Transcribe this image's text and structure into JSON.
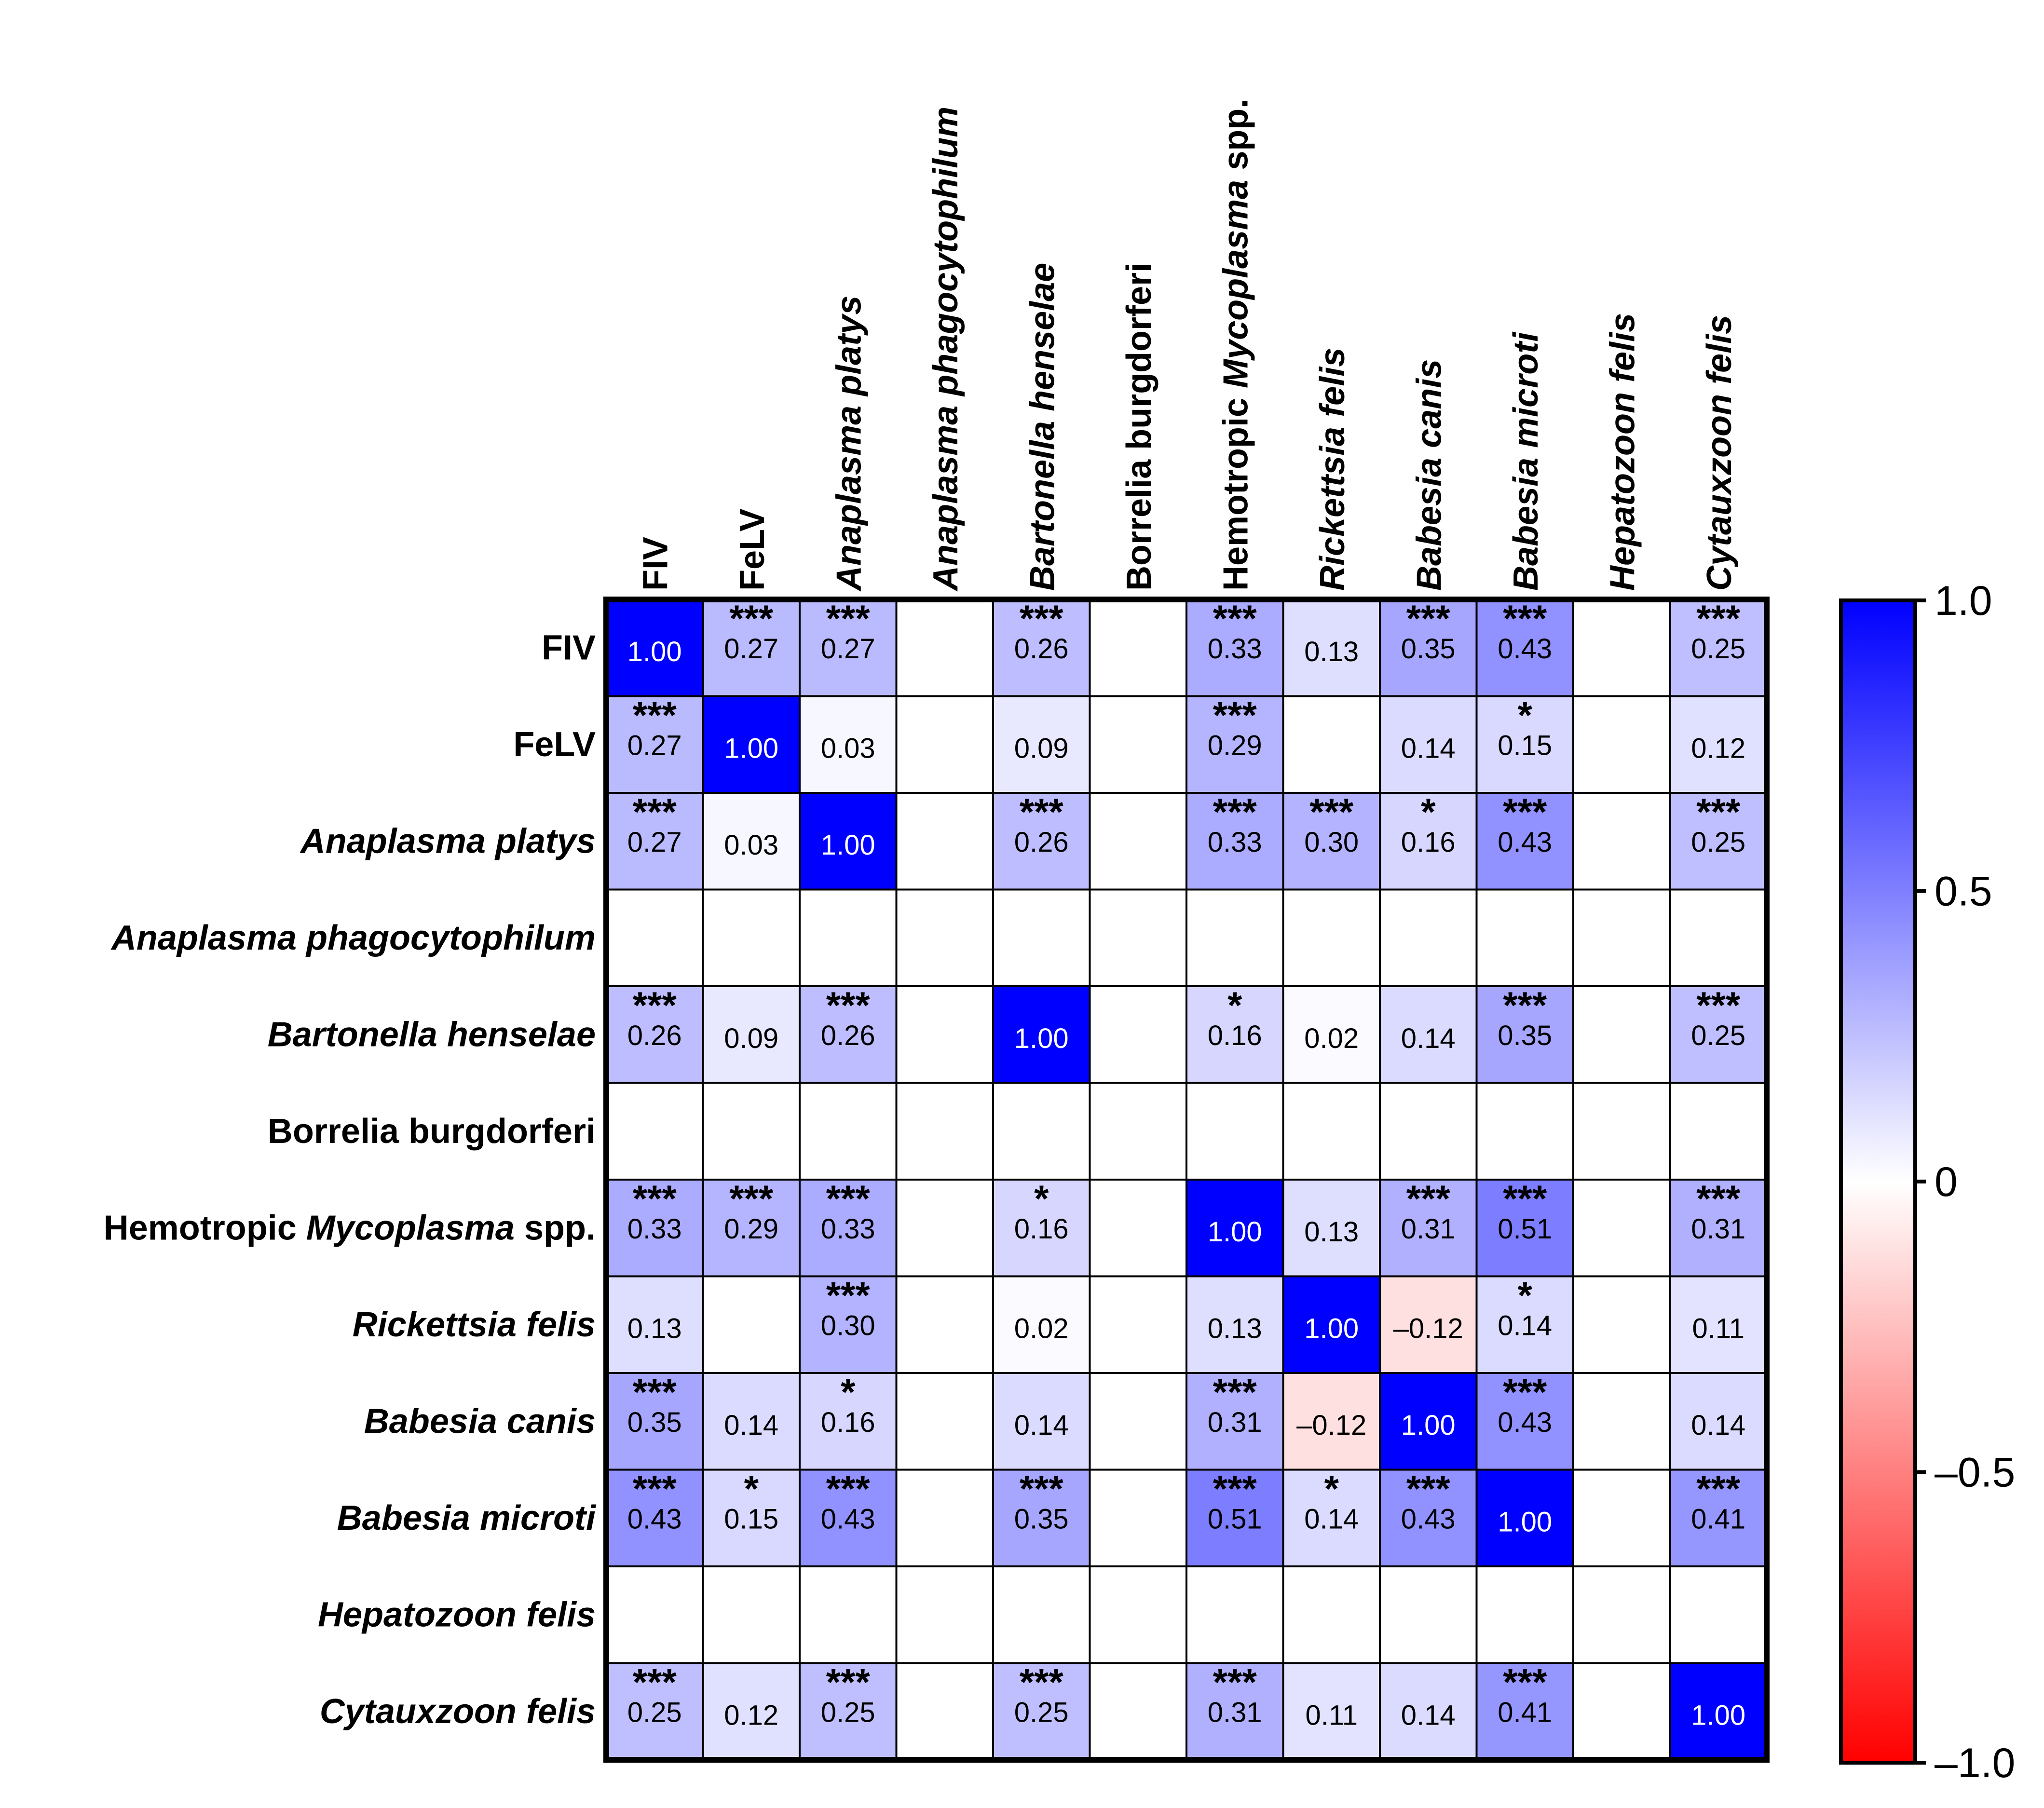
{
  "chart_data": {
    "type": "heatmap",
    "title": "",
    "row_labels": [
      {
        "segments": [
          {
            "text": "FIV",
            "italic": false
          }
        ]
      },
      {
        "segments": [
          {
            "text": "FeLV",
            "italic": false
          }
        ]
      },
      {
        "segments": [
          {
            "text": "Anaplasma platys",
            "italic": true
          }
        ]
      },
      {
        "segments": [
          {
            "text": "Anaplasma phagocytophilum",
            "italic": true
          }
        ]
      },
      {
        "segments": [
          {
            "text": "Bartonella henselae",
            "italic": true
          }
        ]
      },
      {
        "segments": [
          {
            "text": "Borrelia burgdorferi",
            "italic": false
          }
        ]
      },
      {
        "segments": [
          {
            "text": "Hemotropic ",
            "italic": false
          },
          {
            "text": "Mycoplasma",
            "italic": true
          },
          {
            "text": " spp.",
            "italic": false
          }
        ]
      },
      {
        "segments": [
          {
            "text": "Rickettsia felis",
            "italic": true
          }
        ]
      },
      {
        "segments": [
          {
            "text": "Babesia canis",
            "italic": true
          }
        ]
      },
      {
        "segments": [
          {
            "text": "Babesia microti",
            "italic": true
          }
        ]
      },
      {
        "segments": [
          {
            "text": "Hepatozoon felis",
            "italic": true
          }
        ]
      },
      {
        "segments": [
          {
            "text": "Cytauxzoon felis",
            "italic": true
          }
        ]
      }
    ],
    "values": [
      [
        1.0,
        0.27,
        0.27,
        null,
        0.26,
        null,
        0.33,
        0.13,
        0.35,
        0.43,
        null,
        0.25
      ],
      [
        0.27,
        1.0,
        0.03,
        null,
        0.09,
        null,
        0.29,
        null,
        0.14,
        0.15,
        null,
        0.12
      ],
      [
        0.27,
        0.03,
        1.0,
        null,
        0.26,
        null,
        0.33,
        0.3,
        0.16,
        0.43,
        null,
        0.25
      ],
      [
        null,
        null,
        null,
        null,
        null,
        null,
        null,
        null,
        null,
        null,
        null,
        null
      ],
      [
        0.26,
        0.09,
        0.26,
        null,
        1.0,
        null,
        0.16,
        0.02,
        0.14,
        0.35,
        null,
        0.25
      ],
      [
        null,
        null,
        null,
        null,
        null,
        null,
        null,
        null,
        null,
        null,
        null,
        null
      ],
      [
        0.33,
        0.29,
        0.33,
        null,
        0.16,
        null,
        1.0,
        0.13,
        0.31,
        0.51,
        null,
        0.31
      ],
      [
        0.13,
        null,
        0.3,
        null,
        0.02,
        null,
        0.13,
        1.0,
        -0.12,
        0.14,
        null,
        0.11
      ],
      [
        0.35,
        0.14,
        0.16,
        null,
        0.14,
        null,
        0.31,
        -0.12,
        1.0,
        0.43,
        null,
        0.14
      ],
      [
        0.43,
        0.15,
        0.43,
        null,
        0.35,
        null,
        0.51,
        0.14,
        0.43,
        1.0,
        null,
        0.41
      ],
      [
        null,
        null,
        null,
        null,
        null,
        null,
        null,
        null,
        null,
        null,
        null,
        null
      ],
      [
        0.25,
        0.12,
        0.25,
        null,
        0.25,
        null,
        0.31,
        0.11,
        0.14,
        0.41,
        null,
        1.0
      ]
    ],
    "value_labels": [
      [
        "1.00",
        "0.27",
        "0.27",
        "",
        "0.26",
        "",
        "0.33",
        "0.13",
        "0.35",
        "0.43",
        "",
        "0.25"
      ],
      [
        "0.27",
        "1.00",
        "0.03",
        "",
        "0.09",
        "",
        "0.29",
        "",
        "0.14",
        "0.15",
        "",
        "0.12"
      ],
      [
        "0.27",
        "0.03",
        "1.00",
        "",
        "0.26",
        "",
        "0.33",
        "0.30",
        "0.16",
        "0.43",
        "",
        "0.25"
      ],
      [
        "",
        "",
        "",
        "",
        "",
        "",
        "",
        "",
        "",
        "",
        "",
        ""
      ],
      [
        "0.26",
        "0.09",
        "0.26",
        "",
        "1.00",
        "",
        "0.16",
        "0.02",
        "0.14",
        "0.35",
        "",
        "0.25"
      ],
      [
        "",
        "",
        "",
        "",
        "",
        "",
        "",
        "",
        "",
        "",
        "",
        ""
      ],
      [
        "0.33",
        "0.29",
        "0.33",
        "",
        "0.16",
        "",
        "1.00",
        "0.13",
        "0.31",
        "0.51",
        "",
        "0.31"
      ],
      [
        "0.13",
        "",
        "0.30",
        "",
        "0.02",
        "",
        "0.13",
        "1.00",
        "–0.12",
        "0.14",
        "",
        "0.11"
      ],
      [
        "0.35",
        "0.14",
        "0.16",
        "",
        "0.14",
        "",
        "0.31",
        "–0.12",
        "1.00",
        "0.43",
        "",
        "0.14"
      ],
      [
        "0.43",
        "0.15",
        "0.43",
        "",
        "0.35",
        "",
        "0.51",
        "0.14",
        "0.43",
        "1.00",
        "",
        "0.41"
      ],
      [
        "",
        "",
        "",
        "",
        "",
        "",
        "",
        "",
        "",
        "",
        "",
        ""
      ],
      [
        "0.25",
        "0.12",
        "0.25",
        "",
        "0.25",
        "",
        "0.31",
        "0.11",
        "0.14",
        "0.41",
        "",
        "1.00"
      ]
    ],
    "significance": [
      [
        "",
        "***",
        "***",
        "",
        "***",
        "",
        "***",
        "",
        "***",
        "***",
        "",
        "***"
      ],
      [
        "***",
        "",
        "",
        "",
        "",
        "",
        "***",
        "",
        "",
        "*",
        "",
        ""
      ],
      [
        "***",
        "",
        "",
        "",
        "***",
        "",
        "***",
        "***",
        "*",
        "***",
        "",
        "***"
      ],
      [
        "",
        "",
        "",
        "",
        "",
        "",
        "",
        "",
        "",
        "",
        "",
        ""
      ],
      [
        "***",
        "",
        "***",
        "",
        "",
        "",
        "*",
        "",
        "",
        "***",
        "",
        "***"
      ],
      [
        "",
        "",
        "",
        "",
        "",
        "",
        "",
        "",
        "",
        "",
        "",
        ""
      ],
      [
        "***",
        "***",
        "***",
        "",
        "*",
        "",
        "",
        "",
        "***",
        "***",
        "",
        "***"
      ],
      [
        "",
        "",
        "***",
        "",
        "",
        "",
        "",
        "",
        "",
        "*",
        "",
        ""
      ],
      [
        "***",
        "",
        "*",
        "",
        "",
        "",
        "***",
        "",
        "",
        "***",
        "",
        ""
      ],
      [
        "***",
        "*",
        "***",
        "",
        "***",
        "",
        "***",
        "*",
        "***",
        "",
        "",
        "***"
      ],
      [
        "",
        "",
        "",
        "",
        "",
        "",
        "",
        "",
        "",
        "",
        "",
        ""
      ],
      [
        "***",
        "",
        "***",
        "",
        "***",
        "",
        "***",
        "",
        "",
        "***",
        "",
        ""
      ]
    ],
    "colorbar": {
      "min": -1.0,
      "max": 1.0,
      "tick_values": [
        1.0,
        0.5,
        0,
        -0.5,
        -1.0
      ],
      "tick_labels": [
        "1.0",
        "0.5",
        "0",
        "–0.5",
        "–1.0"
      ],
      "color_negative": "#ff0000",
      "color_zero": "#ffffff",
      "color_positive": "#0000ff"
    },
    "legend_position": "right"
  }
}
